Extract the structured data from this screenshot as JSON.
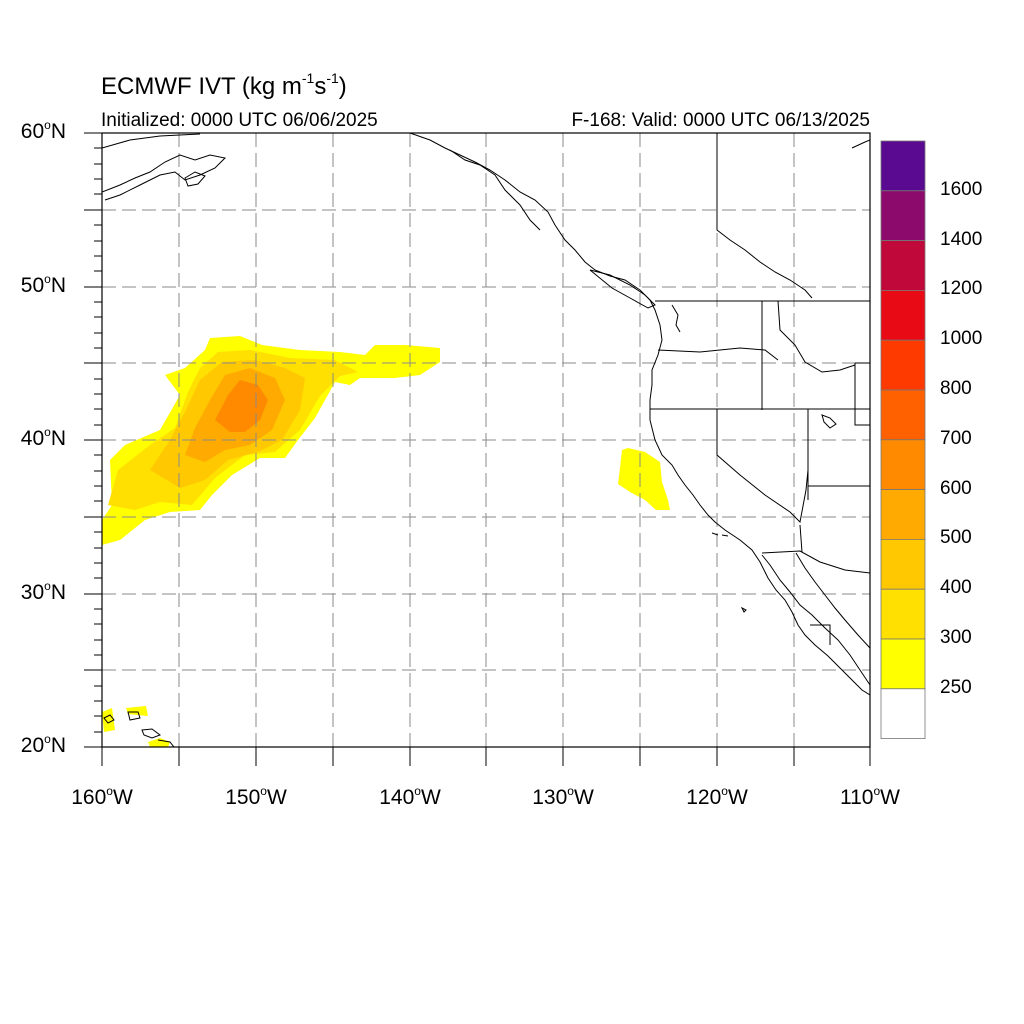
{
  "map": {
    "title_main": "ECMWF IVT (kg m",
    "title_exp1": "-1",
    "title_mid": "s",
    "title_exp2": "-1",
    "title_end": ")",
    "initialized": "Initialized: 0000 UTC 06/06/2025",
    "valid": "F-168: Valid: 0000 UTC 06/13/2025",
    "projection": "cylindrical-equidistant",
    "extent": {
      "lon": [
        -160,
        -110
      ],
      "lat": [
        20,
        60
      ]
    },
    "grid": "dashed every 5 degrees",
    "lat_labels": [
      "60",
      "50",
      "40",
      "30",
      "20"
    ],
    "lat_suffix": "N",
    "lon_labels": [
      "160",
      "150",
      "140",
      "130",
      "120",
      "110"
    ],
    "lon_suffix": "W",
    "features": [
      "North American west coast",
      "Western US state borders",
      "Hawaiian Islands",
      "Alaska coastline",
      "IVT plume northeast of Hawaii",
      "IVT patch off California"
    ]
  },
  "colorbar": {
    "levels": [
      "1600",
      "1400",
      "1200",
      "1000",
      "800",
      "700",
      "600",
      "500",
      "400",
      "300",
      "250"
    ],
    "colors": [
      "#5a0a91",
      "#8b0a6b",
      "#c0093a",
      "#e80a14",
      "#ff3a00",
      "#ff6000",
      "#ff8a00",
      "#ffaa00",
      "#ffc800",
      "#ffe000",
      "#ffff00",
      "#ffffff"
    ]
  },
  "colors": {
    "ivt_250": "#ffff00",
    "ivt_300": "#ffe000",
    "ivt_400": "#ffc800",
    "ivt_500": "#ffaa00",
    "ivt_600": "#ff8a00"
  }
}
